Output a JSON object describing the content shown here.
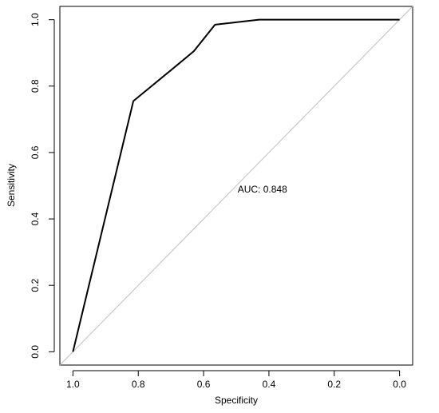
{
  "chart_data": {
    "type": "line",
    "title": "",
    "xlabel": "Specificity",
    "ylabel": "Sensitivity",
    "x_reversed": true,
    "xlim": [
      1.04,
      -0.04
    ],
    "ylim": [
      -0.04,
      1.04
    ],
    "x_ticks": [
      1.0,
      0.8,
      0.6,
      0.4,
      0.2,
      0.0
    ],
    "y_ticks": [
      0.0,
      0.2,
      0.4,
      0.6,
      0.8,
      1.0
    ],
    "x_tick_labels": [
      "1.0",
      "0.8",
      "0.6",
      "0.4",
      "0.2",
      "0.0"
    ],
    "y_tick_labels": [
      "0.0",
      "0.2",
      "0.4",
      "0.6",
      "0.8",
      "1.0"
    ],
    "grid": false,
    "legend": false,
    "series": [
      {
        "color": "#000000",
        "x": [
          1.0,
          0.815,
          0.685,
          0.63,
          0.565,
          0.43,
          0.0
        ],
        "y": [
          0.0,
          0.755,
          0.86,
          0.905,
          0.985,
          1.0,
          1.0
        ]
      }
    ],
    "reference_line": {
      "color": "#c0c0c0",
      "x": [
        1.04,
        -0.04
      ],
      "y": [
        -0.04,
        1.04
      ]
    },
    "annotations": [
      {
        "text": "AUC: 0.848",
        "x": 0.42,
        "y": 0.48
      }
    ]
  }
}
